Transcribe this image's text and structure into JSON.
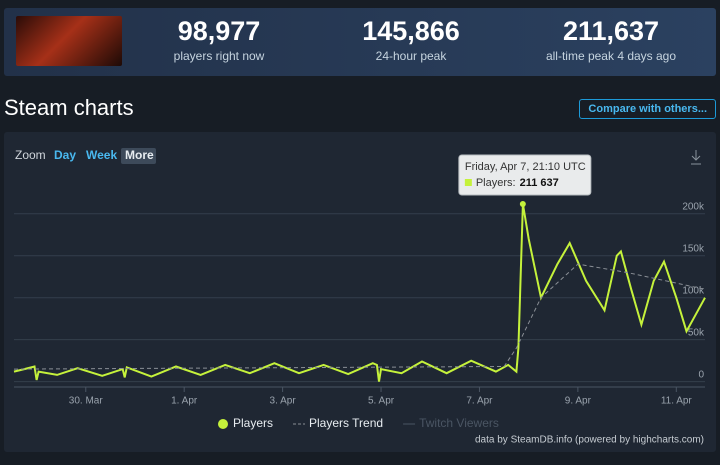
{
  "header": {
    "stats": [
      {
        "value": "98,977",
        "label": "players right now"
      },
      {
        "value": "145,866",
        "label": "24-hour peak"
      },
      {
        "value": "211,637",
        "label": "all-time peak 4 days ago"
      }
    ]
  },
  "section_title": "Steam charts",
  "compare_button": "Compare with others...",
  "zoom": {
    "label": "Zoom",
    "options": [
      "Day",
      "Week",
      "More"
    ]
  },
  "tooltip": {
    "title": "Friday, Apr 7, 21:10 UTC",
    "label": "Players:",
    "value": "211 637"
  },
  "credits": "data by SteamDB.info (powered by highcharts.com)",
  "chart_data": {
    "type": "line",
    "xlim": [
      "Mar 28 13:00",
      "Apr 11 14:00"
    ],
    "xticks": [
      {
        "value": "Mar 30 00:00",
        "label": "30. Mar"
      },
      {
        "value": "Apr 1 00:00",
        "label": "1. Apr"
      },
      {
        "value": "Apr 3 00:00",
        "label": "3. Apr"
      },
      {
        "value": "Apr 5 00:00",
        "label": "5. Apr"
      },
      {
        "value": "Apr 7 00:00",
        "label": "7. Apr"
      },
      {
        "value": "Apr 9 00:00",
        "label": "9. Apr"
      },
      {
        "value": "Apr 11 00:00",
        "label": "11. Apr"
      }
    ],
    "ylim": [
      -4000,
      214000
    ],
    "yticks": [
      0,
      {
        "value": 50000,
        "label": "50k"
      },
      {
        "value": 100000,
        "label": "100k"
      },
      {
        "value": 150000,
        "label": "150k"
      },
      {
        "value": 200000,
        "label": "200k"
      }
    ],
    "grid": true,
    "series": [
      {
        "name": "Players",
        "color": "#c5f23b",
        "dash": false,
        "visible": true,
        "x": [
          "Mar 28 13:00",
          "Mar 28 18:00",
          "Mar 28 23:00",
          "Mar 29 00:00",
          "Mar 29 01:00",
          "Mar 29 10:00",
          "Mar 29 20:00",
          "Mar 30 08:00",
          "Mar 30 18:00",
          "Mar 30 19:00",
          "Mar 30 20:00",
          "Mar 31 08:00",
          "Mar 31 20:00",
          "Apr 1 08:00",
          "Apr 1 20:00",
          "Apr 2 08:00",
          "Apr 2 20:00",
          "Apr 3 08:00",
          "Apr 3 20:00",
          "Apr 4 08:00",
          "Apr 4 20:00",
          "Apr 4 22:00",
          "Apr 4 23:00",
          "Apr 5 00:00",
          "Apr 5 10:00",
          "Apr 5 20:00",
          "Apr 6 08:00",
          "Apr 6 20:00",
          "Apr 7 08:00",
          "Apr 7 14:00",
          "Apr 7 18:00",
          "Apr 7 19:00",
          "Apr 7 21:10",
          "Apr 8 00:00",
          "Apr 8 06:00",
          "Apr 8 14:00",
          "Apr 8 20:00",
          "Apr 9 04:00",
          "Apr 9 13:00",
          "Apr 9 19:00",
          "Apr 9 21:00",
          "Apr 10 02:00",
          "Apr 10 07:00",
          "Apr 10 13:00",
          "Apr 10 18:00",
          "Apr 11 00:00",
          "Apr 11 05:00",
          "Apr 11 14:00"
        ],
        "values": [
          12000,
          15000,
          18000,
          2000,
          12000,
          8000,
          16000,
          7000,
          15000,
          5000,
          17000,
          6000,
          18000,
          8000,
          20000,
          10000,
          22000,
          10000,
          20000,
          9000,
          22000,
          20000,
          0,
          15000,
          10000,
          24000,
          10000,
          25000,
          12000,
          20000,
          12000,
          40000,
          211637,
          170000,
          100000,
          140000,
          165000,
          120000,
          85000,
          150000,
          155000,
          110000,
          68000,
          120000,
          143000,
          100000,
          60000,
          100000
        ]
      },
      {
        "name": "Players Trend",
        "color": "#8a8f96",
        "dash": true,
        "visible": true,
        "x": [
          "Mar 28 13:00",
          "Apr 7 12:00",
          "Apr 7 18:00",
          "Apr 8 06:00",
          "Apr 9 00:00",
          "Apr 10 00:00",
          "Apr 11 14:00"
        ],
        "values": [
          15000,
          18000,
          40000,
          100000,
          140000,
          130000,
          110000
        ]
      },
      {
        "name": "Twitch Viewers",
        "color": "#4a5563",
        "dash": false,
        "visible": false,
        "x": [],
        "values": []
      }
    ]
  }
}
